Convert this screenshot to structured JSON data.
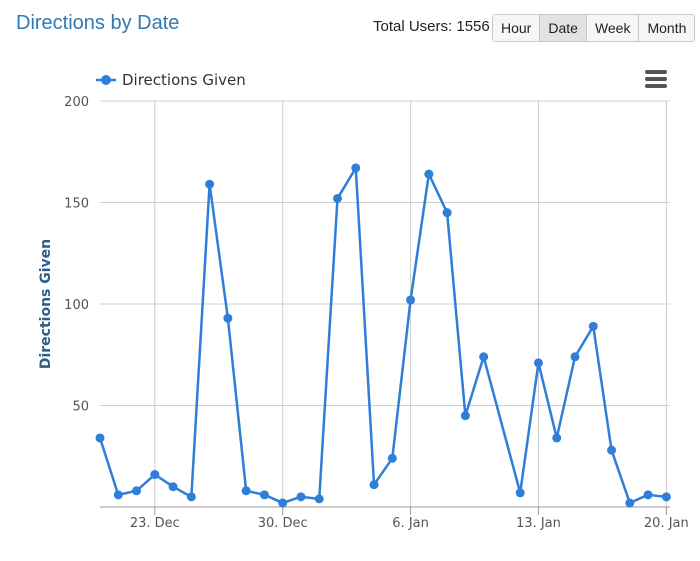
{
  "header": {
    "title": "Directions by Date",
    "total_users_label": "Total Users:",
    "total_users_value": "1556",
    "granularity_buttons": [
      {
        "label": "Hour",
        "active": false
      },
      {
        "label": "Date",
        "active": true
      },
      {
        "label": "Week",
        "active": false
      },
      {
        "label": "Month",
        "active": false
      }
    ]
  },
  "icons": {
    "chart_menu": "hamburger-menu-icon"
  },
  "chart_data": {
    "type": "line",
    "title": "",
    "xlabel": "",
    "ylabel": "Directions Given",
    "legend": {
      "position": "top-left",
      "entries": [
        "Directions Given"
      ]
    },
    "grid": {
      "x": true,
      "y": true
    },
    "ylim": [
      0,
      200
    ],
    "yticks": [
      50,
      100,
      150,
      200
    ],
    "xticks": [
      {
        "day": 3,
        "label": "23. Dec"
      },
      {
        "day": 10,
        "label": "30. Dec"
      },
      {
        "day": 17,
        "label": "6. Jan"
      },
      {
        "day": 24,
        "label": "13. Jan"
      },
      {
        "day": 31,
        "label": "20. Jan"
      }
    ],
    "xlim": [
      0,
      31.2
    ],
    "color": "#2f7ed8",
    "series": [
      {
        "name": "Directions Given",
        "x": [
          0,
          1,
          2,
          3,
          4,
          5,
          6,
          7,
          8,
          9,
          10,
          11,
          12,
          13,
          14,
          15,
          16,
          17,
          18,
          19,
          20,
          21,
          23,
          24,
          25,
          26,
          27,
          28,
          29,
          30,
          31
        ],
        "values": [
          34,
          6,
          8,
          16,
          10,
          5,
          159,
          93,
          8,
          6,
          2,
          5,
          4,
          152,
          167,
          11,
          24,
          102,
          164,
          145,
          45,
          74,
          7,
          71,
          34,
          74,
          89,
          28,
          2,
          6,
          5
        ]
      }
    ]
  }
}
